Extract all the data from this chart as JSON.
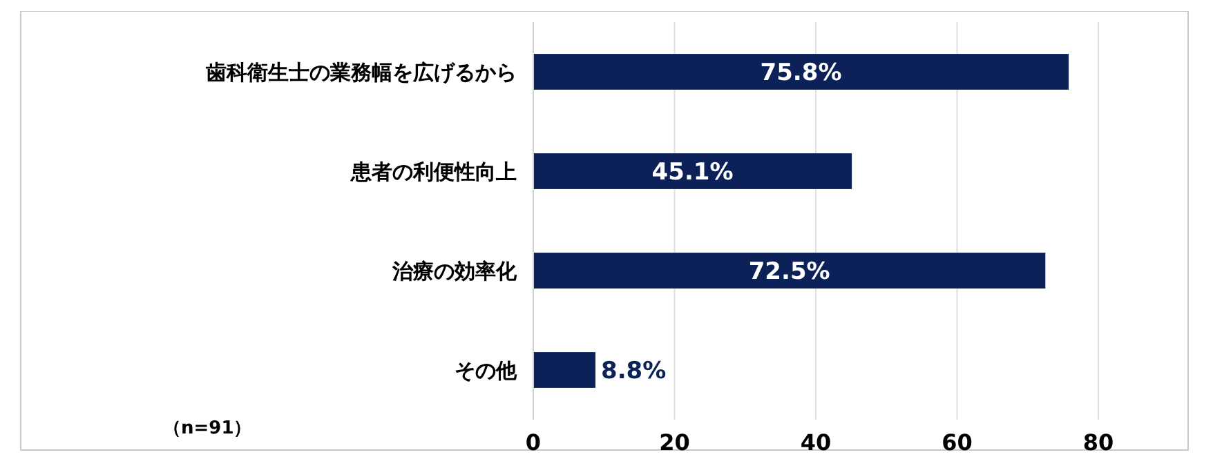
{
  "chart_data": {
    "type": "bar",
    "orientation": "horizontal",
    "categories": [
      "歯科衛生士の業務幅を広げるから",
      "患者の利便性向上",
      "治療の効率化",
      "その他"
    ],
    "values": [
      75.8,
      45.1,
      72.5,
      8.8
    ],
    "color": "#0c2158",
    "value_labels": [
      "75.8%",
      "45.1%",
      "72.5%",
      "8.8%"
    ],
    "xlim": [
      0,
      80
    ],
    "xticks": [
      0,
      20,
      40,
      60,
      80
    ],
    "grid": "x",
    "annotations": [
      "（n=91）"
    ]
  }
}
